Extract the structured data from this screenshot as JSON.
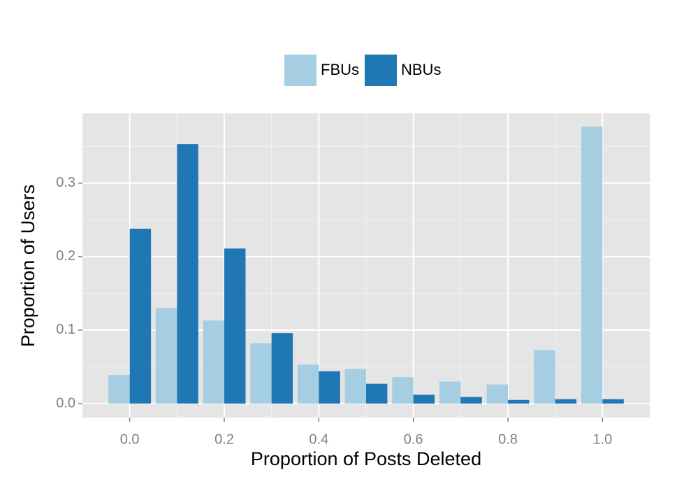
{
  "chart_data": {
    "type": "bar",
    "x_label": "Proportion of Posts Deleted",
    "y_label": "Proportion of Users",
    "x": [
      0.0,
      0.1,
      0.2,
      0.3,
      0.4,
      0.5,
      0.6,
      0.7,
      0.8,
      0.9,
      1.0
    ],
    "series": [
      {
        "name": "FBUs",
        "color": "#a6cee3",
        "values": [
          0.039,
          0.13,
          0.113,
          0.082,
          0.053,
          0.047,
          0.036,
          0.03,
          0.026,
          0.073,
          0.377
        ]
      },
      {
        "name": "NBUs",
        "color": "#1f78b4",
        "values": [
          0.238,
          0.353,
          0.211,
          0.096,
          0.044,
          0.027,
          0.012,
          0.009,
          0.005,
          0.006,
          0.006
        ]
      }
    ],
    "xlim": [
      -0.1,
      1.1
    ],
    "xticks": [
      {
        "value": 0.0,
        "label": "0.0"
      },
      0.2,
      0.4,
      0.6,
      0.8,
      {
        "value": 1.0,
        "label": "1.0"
      }
    ],
    "ylim": [
      -0.019,
      0.395
    ],
    "yticks": [
      {
        "value": 0.0,
        "label": "0.0"
      },
      0.1,
      0.2,
      0.3
    ],
    "grid": true,
    "legend": "top",
    "background": "#e5e5e5"
  }
}
